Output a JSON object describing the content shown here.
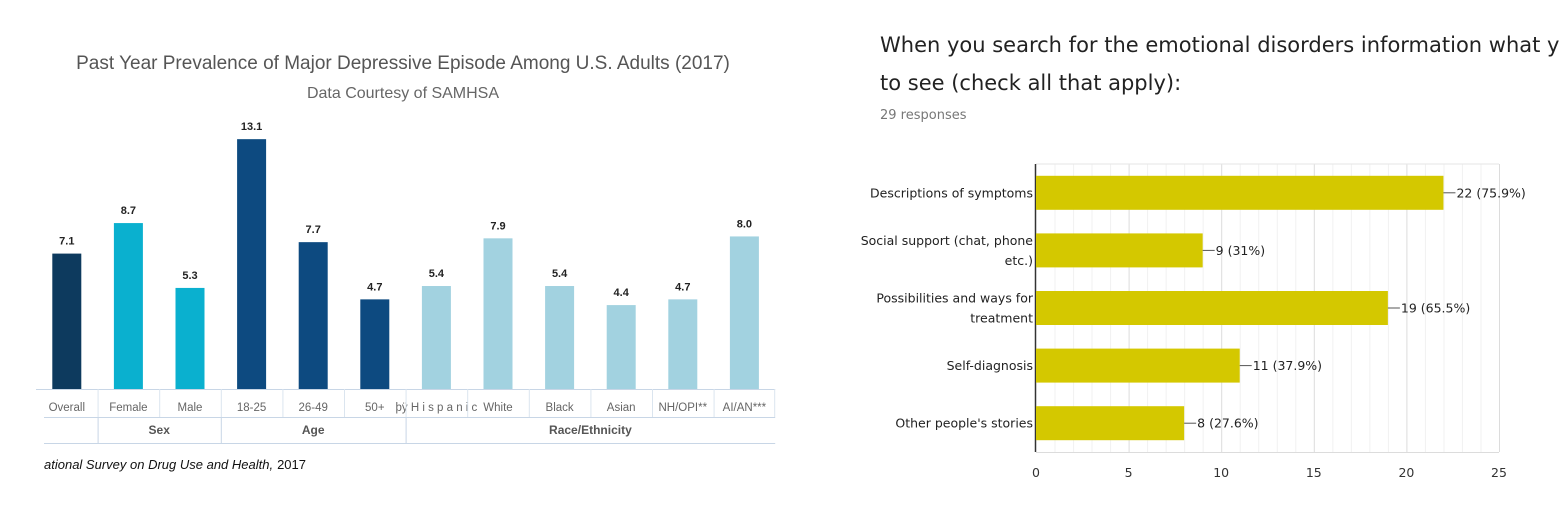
{
  "chart_data": [
    {
      "type": "bar",
      "title": "Past Year Prevalence of Major Depressive Episode Among U.S. Adults (2017)",
      "subtitle": "Data Courtesy of SAMHSA",
      "categories": [
        "Overall",
        "Female",
        "Male",
        "18-25",
        "26-49",
        "50+",
        "þÿ H i s p a n i c",
        "White",
        "Black",
        "Asian",
        "NH/OPI**",
        "AI/AN***"
      ],
      "values": [
        7.1,
        8.7,
        5.3,
        13.1,
        7.7,
        4.7,
        5.4,
        7.9,
        5.4,
        4.4,
        4.7,
        8.0
      ],
      "value_labels": [
        "7.1",
        "8.7",
        "5.3",
        "13.1",
        "7.7",
        "4.7",
        "5.4",
        "7.9",
        "5.4",
        "4.4",
        "4.7",
        "8.0"
      ],
      "groups": [
        {
          "label": "",
          "count": 1
        },
        {
          "label": "Sex",
          "count": 2
        },
        {
          "label": "Age",
          "count": 3
        },
        {
          "label": "Race/Ethnicity",
          "count": 6
        }
      ],
      "colors": [
        "#0d3a5e",
        "#0ab0cf",
        "#0ab0cf",
        "#0d4a80",
        "#0d4a80",
        "#0d4a80",
        "#a2d2e0",
        "#a2d2e0",
        "#a2d2e0",
        "#a2d2e0",
        "#a2d2e0",
        "#a2d2e0"
      ],
      "ylim": [
        0,
        14
      ],
      "source_italic": "ational Survey on Drug Use and Health,",
      "source_year": "2017",
      "grid": false
    },
    {
      "type": "bar",
      "orientation": "horizontal",
      "title": "When you search for the emotional disorders information what you expect to see (check all that apply):",
      "title_lines": [
        "When you search for the emotional disorders information what you expect",
        "to see (check all that apply):"
      ],
      "responses": "29 responses",
      "categories": [
        [
          "Descriptions of symptoms"
        ],
        [
          "Social support (chat, phone",
          "etc.)"
        ],
        [
          "Possibilities and ways for",
          "treatment"
        ],
        [
          "Self-diagnosis"
        ],
        [
          "Other people's stories"
        ]
      ],
      "values": [
        22,
        9,
        19,
        11,
        8
      ],
      "value_labels": [
        "22 (75.9%)",
        "9 (31%)",
        "19 (65.5%)",
        "11 (37.9%)",
        "8 (27.6%)"
      ],
      "xticks": [
        "0",
        "5",
        "10",
        "15",
        "20",
        "25"
      ],
      "xlim": [
        0,
        25
      ],
      "bar_color": "#d4c800",
      "grid": true
    }
  ]
}
